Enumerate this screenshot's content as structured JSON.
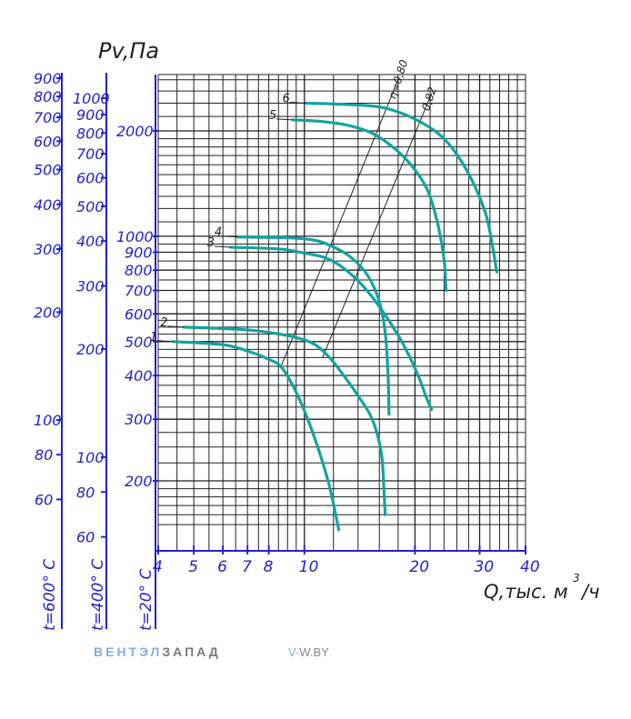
{
  "chart_data": {
    "type": "line",
    "title": "",
    "ylabel": "Pv,Па",
    "xlabel_main": "Q,тыс. м",
    "xlabel_sup": "3",
    "xlabel_tail": "/ч",
    "x_scale": "log",
    "y_scale": "log",
    "xlim": [
      4,
      40
    ],
    "ylim_main": [
      140,
      3000
    ],
    "x_ticks": [
      4,
      5,
      6,
      7,
      8,
      10,
      20,
      30,
      40
    ],
    "x_tick_labels": [
      "4",
      "5",
      "6",
      "7",
      "8",
      "10",
      "20",
      "30",
      "40"
    ],
    "y_tick_labels_main": [
      {
        "v": 200,
        "label": "200"
      },
      {
        "v": 300,
        "label": "300"
      },
      {
        "v": 400,
        "label": "400"
      },
      {
        "v": 500,
        "label": "500"
      },
      {
        "v": 600,
        "label": "600"
      },
      {
        "v": 700,
        "label": "700"
      },
      {
        "v": 800,
        "label": "800"
      },
      {
        "v": 900,
        "label": "900"
      },
      {
        "v": 1000,
        "label": "1000"
      },
      {
        "v": 2000,
        "label": "2000"
      }
    ],
    "grid": true,
    "temperature_scales": [
      {
        "label": "t=600° С",
        "ticks": [
          {
            "v": 60,
            "label": "60"
          },
          {
            "v": 80,
            "label": "80"
          },
          {
            "v": 100,
            "label": "100"
          },
          {
            "v": 200,
            "label": "200"
          },
          {
            "v": 300,
            "label": "300"
          },
          {
            "v": 400,
            "label": "400"
          },
          {
            "v": 500,
            "label": "500"
          },
          {
            "v": 600,
            "label": "600"
          },
          {
            "v": 700,
            "label": "700"
          },
          {
            "v": 800,
            "label": "800"
          },
          {
            "v": 900,
            "label": "900"
          }
        ]
      },
      {
        "label": "t=400° С",
        "ticks": [
          {
            "v": 60,
            "label": "60"
          },
          {
            "v": 80,
            "label": "80"
          },
          {
            "v": 100,
            "label": "100"
          },
          {
            "v": 200,
            "label": "200"
          },
          {
            "v": 300,
            "label": "300"
          },
          {
            "v": 400,
            "label": "400"
          },
          {
            "v": 500,
            "label": "500"
          },
          {
            "v": 600,
            "label": "600"
          },
          {
            "v": 700,
            "label": "700"
          },
          {
            "v": 800,
            "label": "800"
          },
          {
            "v": 900,
            "label": "900"
          },
          {
            "v": 1000,
            "label": "1000"
          }
        ]
      },
      {
        "label": "t=20° С",
        "ticks": []
      }
    ],
    "series": [
      {
        "name": "1",
        "points": [
          [
            4.4,
            500
          ],
          [
            6,
            490
          ],
          [
            7,
            470
          ],
          [
            8,
            445
          ],
          [
            8.7,
            420
          ],
          [
            9.6,
            350
          ],
          [
            10.6,
            270
          ],
          [
            11.6,
            200
          ],
          [
            12.2,
            158
          ],
          [
            12.4,
            145
          ]
        ]
      },
      {
        "name": "2",
        "points": [
          [
            4.7,
            550
          ],
          [
            7,
            540
          ],
          [
            9,
            520
          ],
          [
            10.5,
            495
          ],
          [
            11.6,
            455
          ],
          [
            12.8,
            400
          ],
          [
            14,
            350
          ],
          [
            15.3,
            300
          ],
          [
            16.2,
            240
          ],
          [
            16.5,
            180
          ],
          [
            16.6,
            160
          ]
        ]
      },
      {
        "name": "3",
        "points": [
          [
            6.3,
            930
          ],
          [
            8.5,
            920
          ],
          [
            10,
            895
          ],
          [
            11.5,
            865
          ],
          [
            13,
            800
          ],
          [
            14.8,
            700
          ],
          [
            16.7,
            590
          ],
          [
            18.6,
            490
          ],
          [
            20.4,
            400
          ],
          [
            21.5,
            345
          ],
          [
            22.2,
            320
          ]
        ]
      },
      {
        "name": "4",
        "points": [
          [
            6.6,
            995
          ],
          [
            9,
            990
          ],
          [
            10.6,
            975
          ],
          [
            11.8,
            940
          ],
          [
            13.4,
            870
          ],
          [
            14.9,
            770
          ],
          [
            16,
            650
          ],
          [
            16.6,
            530
          ],
          [
            16.9,
            400
          ],
          [
            17,
            310
          ]
        ]
      },
      {
        "name": "5",
        "points": [
          [
            9.3,
            2150
          ],
          [
            11,
            2130
          ],
          [
            13,
            2080
          ],
          [
            15.3,
            1970
          ],
          [
            17.5,
            1790
          ],
          [
            19.6,
            1590
          ],
          [
            21.6,
            1360
          ],
          [
            23,
            1100
          ],
          [
            24,
            860
          ],
          [
            24.3,
            700
          ]
        ]
      },
      {
        "name": "6",
        "points": [
          [
            10.1,
            2400
          ],
          [
            13,
            2380
          ],
          [
            16.4,
            2330
          ],
          [
            20.2,
            2150
          ],
          [
            24,
            1900
          ],
          [
            27.6,
            1550
          ],
          [
            31,
            1180
          ],
          [
            32.5,
            940
          ],
          [
            33.4,
            790
          ]
        ]
      }
    ],
    "efficiency_lines": [
      {
        "label": "η=0,80",
        "points": [
          [
            8.6,
            420
          ],
          [
            18,
            2800
          ]
        ]
      },
      {
        "label": "0,82",
        "points": [
          [
            11.2,
            450
          ],
          [
            22.2,
            2560
          ]
        ]
      }
    ],
    "colors": {
      "curve": "#13a3a0",
      "axis": "#2222c8",
      "grid": "#222222"
    }
  },
  "brand": {
    "part1": "ВЕНТЭЛ",
    "part2": "ЗАПАД"
  },
  "site": {
    "part1": "V-",
    "part2": "W.BY"
  }
}
